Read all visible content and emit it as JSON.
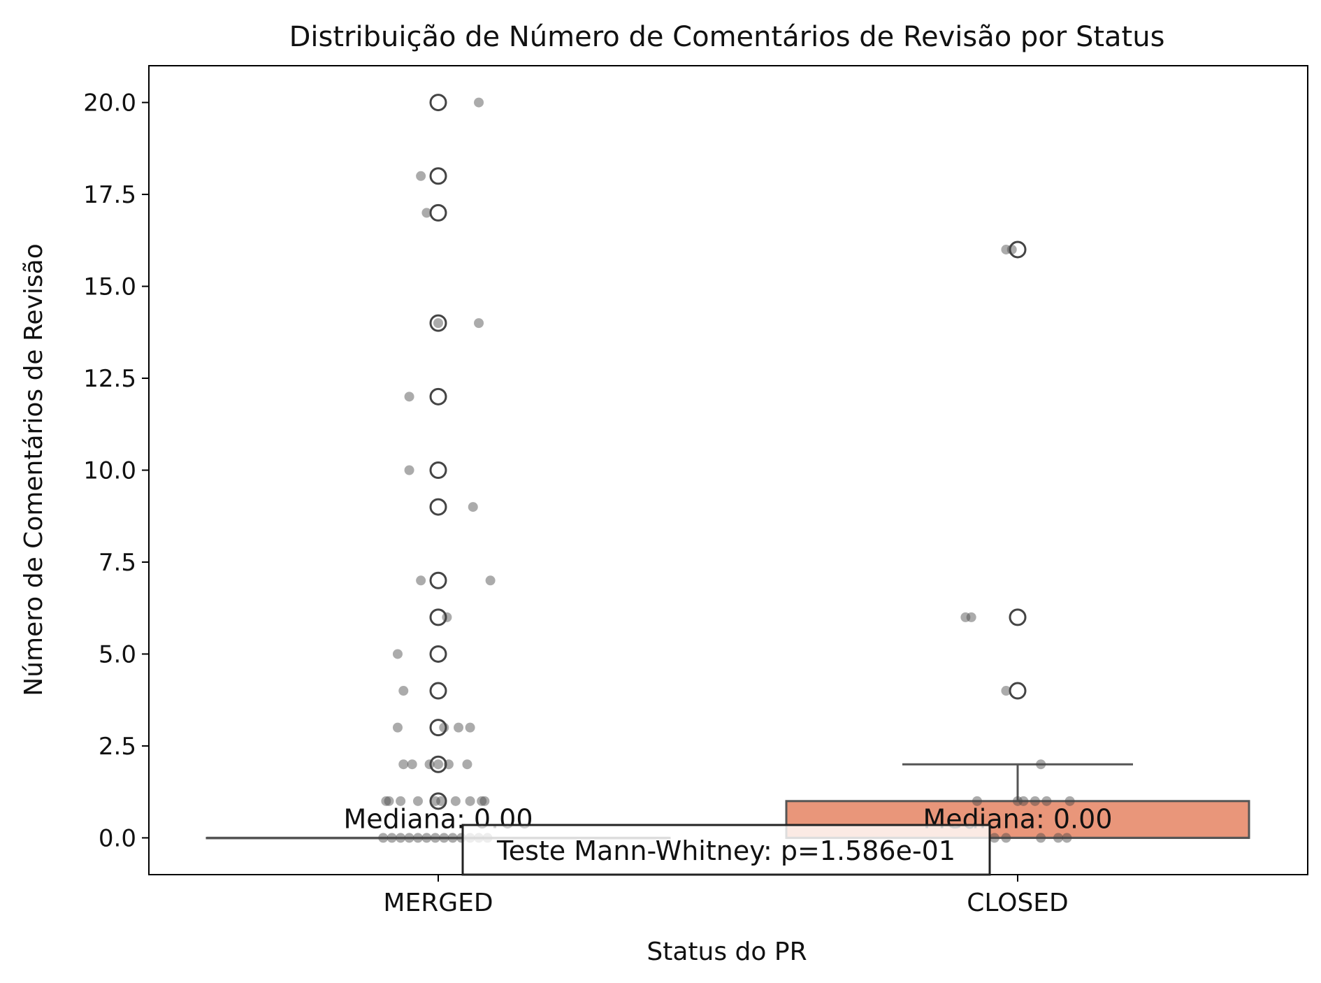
{
  "chart_data": {
    "type": "box",
    "title": "Distribuição de Número de Comentários de Revisão por Status",
    "xlabel": "Status do PR",
    "ylabel": "Número de Comentários de Revisão",
    "categories": [
      "MERGED",
      "CLOSED"
    ],
    "ylim": [
      -1.0,
      21.0
    ],
    "yticks": [
      0.0,
      2.5,
      5.0,
      7.5,
      10.0,
      12.5,
      15.0,
      17.5,
      20.0
    ],
    "ytick_labels": [
      "0.0",
      "2.5",
      "5.0",
      "7.5",
      "10.0",
      "12.5",
      "15.0",
      "17.5",
      "20.0"
    ],
    "grid": false,
    "boxes": [
      {
        "category": "MERGED",
        "q1": 0,
        "median": 0,
        "q3": 0,
        "whisker_low": 0,
        "whisker_high": 0,
        "color": "#aec7e8",
        "fliers": [
          20,
          18,
          17,
          14,
          12,
          10,
          9,
          7,
          6,
          5,
          4,
          3,
          2,
          1
        ],
        "median_label": "Mediana: 0.00"
      },
      {
        "category": "CLOSED",
        "q1": 0,
        "median": 0,
        "q3": 1,
        "whisker_low": 0,
        "whisker_high": 2,
        "color": "#e9967a",
        "fliers": [
          16,
          6,
          4
        ],
        "median_label": "Mediana: 0.00"
      }
    ],
    "strip_points": [
      {
        "category": "MERGED",
        "jitter": 0.07,
        "y": 20
      },
      {
        "category": "MERGED",
        "jitter": -0.03,
        "y": 18
      },
      {
        "category": "MERGED",
        "jitter": -0.02,
        "y": 17
      },
      {
        "category": "MERGED",
        "jitter": 0.07,
        "y": 14
      },
      {
        "category": "MERGED",
        "jitter": 0.0,
        "y": 14
      },
      {
        "category": "MERGED",
        "jitter": -0.05,
        "y": 12
      },
      {
        "category": "MERGED",
        "jitter": -0.05,
        "y": 10
      },
      {
        "category": "MERGED",
        "jitter": 0.06,
        "y": 9
      },
      {
        "category": "MERGED",
        "jitter": -0.03,
        "y": 7
      },
      {
        "category": "MERGED",
        "jitter": 0.09,
        "y": 7
      },
      {
        "category": "MERGED",
        "jitter": 0.015,
        "y": 6
      },
      {
        "category": "MERGED",
        "jitter": -0.07,
        "y": 5
      },
      {
        "category": "MERGED",
        "jitter": -0.06,
        "y": 4
      },
      {
        "category": "MERGED",
        "jitter": -0.07,
        "y": 3
      },
      {
        "category": "MERGED",
        "jitter": 0.035,
        "y": 3
      },
      {
        "category": "MERGED",
        "jitter": 0.055,
        "y": 3
      },
      {
        "category": "MERGED",
        "jitter": 0.01,
        "y": 3
      },
      {
        "category": "MERGED",
        "jitter": -0.06,
        "y": 2
      },
      {
        "category": "MERGED",
        "jitter": -0.045,
        "y": 2
      },
      {
        "category": "MERGED",
        "jitter": -0.015,
        "y": 2
      },
      {
        "category": "MERGED",
        "jitter": 0.0,
        "y": 2
      },
      {
        "category": "MERGED",
        "jitter": 0.018,
        "y": 2
      },
      {
        "category": "MERGED",
        "jitter": 0.05,
        "y": 2
      },
      {
        "category": "MERGED",
        "jitter": -0.09,
        "y": 1
      },
      {
        "category": "MERGED",
        "jitter": -0.085,
        "y": 1
      },
      {
        "category": "MERGED",
        "jitter": -0.065,
        "y": 1
      },
      {
        "category": "MERGED",
        "jitter": -0.035,
        "y": 1
      },
      {
        "category": "MERGED",
        "jitter": -0.005,
        "y": 1
      },
      {
        "category": "MERGED",
        "jitter": 0.005,
        "y": 1
      },
      {
        "category": "MERGED",
        "jitter": 0.03,
        "y": 1
      },
      {
        "category": "MERGED",
        "jitter": 0.055,
        "y": 1
      },
      {
        "category": "MERGED",
        "jitter": 0.075,
        "y": 1
      },
      {
        "category": "MERGED",
        "jitter": 0.08,
        "y": 1
      },
      {
        "category": "MERGED",
        "jitter": -0.095,
        "y": 0
      },
      {
        "category": "MERGED",
        "jitter": -0.08,
        "y": 0
      },
      {
        "category": "MERGED",
        "jitter": -0.065,
        "y": 0
      },
      {
        "category": "MERGED",
        "jitter": -0.05,
        "y": 0
      },
      {
        "category": "MERGED",
        "jitter": -0.035,
        "y": 0
      },
      {
        "category": "MERGED",
        "jitter": -0.02,
        "y": 0
      },
      {
        "category": "MERGED",
        "jitter": -0.005,
        "y": 0
      },
      {
        "category": "MERGED",
        "jitter": 0.01,
        "y": 0
      },
      {
        "category": "MERGED",
        "jitter": 0.025,
        "y": 0
      },
      {
        "category": "MERGED",
        "jitter": 0.04,
        "y": 0
      },
      {
        "category": "MERGED",
        "jitter": 0.055,
        "y": 0
      },
      {
        "category": "MERGED",
        "jitter": 0.07,
        "y": 0
      },
      {
        "category": "MERGED",
        "jitter": 0.085,
        "y": 0
      },
      {
        "category": "CLOSED",
        "jitter": -0.02,
        "y": 16
      },
      {
        "category": "CLOSED",
        "jitter": -0.01,
        "y": 16
      },
      {
        "category": "CLOSED",
        "jitter": -0.09,
        "y": 6
      },
      {
        "category": "CLOSED",
        "jitter": -0.08,
        "y": 6
      },
      {
        "category": "CLOSED",
        "jitter": -0.02,
        "y": 4
      },
      {
        "category": "CLOSED",
        "jitter": 0.04,
        "y": 2
      },
      {
        "category": "CLOSED",
        "jitter": -0.07,
        "y": 1
      },
      {
        "category": "CLOSED",
        "jitter": 0.0,
        "y": 1
      },
      {
        "category": "CLOSED",
        "jitter": 0.01,
        "y": 1
      },
      {
        "category": "CLOSED",
        "jitter": 0.03,
        "y": 1
      },
      {
        "category": "CLOSED",
        "jitter": 0.05,
        "y": 1
      },
      {
        "category": "CLOSED",
        "jitter": 0.09,
        "y": 1
      },
      {
        "category": "CLOSED",
        "jitter": -0.04,
        "y": 0
      },
      {
        "category": "CLOSED",
        "jitter": -0.02,
        "y": 0
      },
      {
        "category": "CLOSED",
        "jitter": 0.04,
        "y": 0
      },
      {
        "category": "CLOSED",
        "jitter": 0.07,
        "y": 0
      },
      {
        "category": "CLOSED",
        "jitter": 0.085,
        "y": 0
      }
    ],
    "annotation": "Teste Mann-Whitney: p=1.586e-01"
  }
}
